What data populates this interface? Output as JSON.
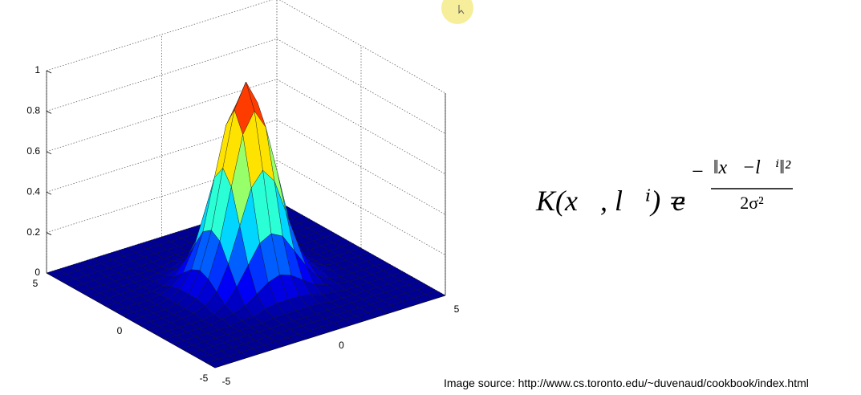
{
  "chart_data": {
    "type": "surface",
    "colormap": "jet",
    "x": [
      -5,
      -4.5,
      -4,
      -3.5,
      -3,
      -2.5,
      -2,
      -1.5,
      -1,
      -0.5,
      0,
      0.5,
      1,
      1.5,
      2,
      2.5,
      3,
      3.5,
      4,
      4.5,
      5
    ],
    "y": [
      -5,
      -4.5,
      -4,
      -3.5,
      -3,
      -2.5,
      -2,
      -1.5,
      -1,
      -0.5,
      0,
      0.5,
      1,
      1.5,
      2,
      2.5,
      3,
      3.5,
      4,
      4.5,
      5
    ],
    "z": [
      [
        0,
        0,
        0,
        0,
        0,
        0,
        0,
        0,
        0,
        0,
        0,
        0,
        0,
        0,
        0,
        0,
        0,
        0,
        0,
        0,
        0
      ],
      [
        0,
        0,
        0,
        0,
        0,
        0,
        0,
        0,
        0,
        0,
        0,
        0,
        0,
        0,
        0,
        0,
        0,
        0,
        0,
        0,
        0
      ],
      [
        0,
        0,
        0,
        0,
        0,
        0,
        0,
        0,
        0,
        0,
        0,
        0,
        0,
        0,
        0,
        0,
        0,
        0,
        0,
        0,
        0
      ],
      [
        0,
        0,
        0,
        0,
        0,
        0,
        0,
        0,
        0,
        0,
        0,
        0,
        0,
        0,
        0,
        0,
        0,
        0,
        0,
        0,
        0
      ],
      [
        0,
        0,
        0,
        0,
        0,
        0,
        0,
        0,
        0.01,
        0.01,
        0.01,
        0.01,
        0.01,
        0,
        0,
        0,
        0,
        0,
        0,
        0,
        0
      ],
      [
        0,
        0,
        0,
        0,
        0,
        0,
        0.01,
        0.01,
        0.03,
        0.04,
        0.04,
        0.04,
        0.03,
        0.01,
        0.01,
        0,
        0,
        0,
        0,
        0,
        0
      ],
      [
        0,
        0,
        0,
        0,
        0,
        0.01,
        0.02,
        0.04,
        0.08,
        0.12,
        0.14,
        0.12,
        0.08,
        0.04,
        0.02,
        0.01,
        0,
        0,
        0,
        0,
        0
      ],
      [
        0,
        0,
        0,
        0,
        0,
        0.01,
        0.04,
        0.11,
        0.2,
        0.29,
        0.32,
        0.29,
        0.2,
        0.11,
        0.04,
        0.01,
        0,
        0,
        0,
        0,
        0
      ],
      [
        0,
        0,
        0,
        0,
        0.01,
        0.03,
        0.08,
        0.2,
        0.37,
        0.54,
        0.61,
        0.54,
        0.37,
        0.2,
        0.08,
        0.03,
        0.01,
        0,
        0,
        0,
        0
      ],
      [
        0,
        0,
        0,
        0,
        0.01,
        0.04,
        0.12,
        0.29,
        0.54,
        0.78,
        0.88,
        0.78,
        0.54,
        0.29,
        0.12,
        0.04,
        0.01,
        0,
        0,
        0,
        0
      ],
      [
        0,
        0,
        0,
        0,
        0.01,
        0.04,
        0.14,
        0.32,
        0.61,
        0.88,
        1,
        0.88,
        0.61,
        0.32,
        0.14,
        0.04,
        0.01,
        0,
        0,
        0,
        0
      ],
      [
        0,
        0,
        0,
        0,
        0.01,
        0.04,
        0.12,
        0.29,
        0.54,
        0.78,
        0.88,
        0.78,
        0.54,
        0.29,
        0.12,
        0.04,
        0.01,
        0,
        0,
        0,
        0
      ],
      [
        0,
        0,
        0,
        0,
        0.01,
        0.03,
        0.08,
        0.2,
        0.37,
        0.54,
        0.61,
        0.54,
        0.37,
        0.2,
        0.08,
        0.03,
        0.01,
        0,
        0,
        0,
        0
      ],
      [
        0,
        0,
        0,
        0,
        0,
        0.01,
        0.04,
        0.11,
        0.2,
        0.29,
        0.32,
        0.29,
        0.2,
        0.11,
        0.04,
        0.01,
        0,
        0,
        0,
        0,
        0
      ],
      [
        0,
        0,
        0,
        0,
        0,
        0.01,
        0.02,
        0.04,
        0.08,
        0.12,
        0.14,
        0.12,
        0.08,
        0.04,
        0.02,
        0.01,
        0,
        0,
        0,
        0,
        0
      ],
      [
        0,
        0,
        0,
        0,
        0,
        0,
        0.01,
        0.01,
        0.03,
        0.04,
        0.04,
        0.04,
        0.03,
        0.01,
        0.01,
        0,
        0,
        0,
        0,
        0,
        0
      ],
      [
        0,
        0,
        0,
        0,
        0,
        0,
        0,
        0,
        0.01,
        0.01,
        0.01,
        0.01,
        0.01,
        0,
        0,
        0,
        0,
        0,
        0,
        0,
        0
      ],
      [
        0,
        0,
        0,
        0,
        0,
        0,
        0,
        0,
        0,
        0,
        0,
        0,
        0,
        0,
        0,
        0,
        0,
        0,
        0,
        0,
        0
      ],
      [
        0,
        0,
        0,
        0,
        0,
        0,
        0,
        0,
        0,
        0,
        0,
        0,
        0,
        0,
        0,
        0,
        0,
        0,
        0,
        0,
        0
      ],
      [
        0,
        0,
        0,
        0,
        0,
        0,
        0,
        0,
        0,
        0,
        0,
        0,
        0,
        0,
        0,
        0,
        0,
        0,
        0,
        0,
        0
      ],
      [
        0,
        0,
        0,
        0,
        0,
        0,
        0,
        0,
        0,
        0,
        0,
        0,
        0,
        0,
        0,
        0,
        0,
        0,
        0,
        0,
        0
      ]
    ],
    "xlim": [
      -5,
      5
    ],
    "ylim": [
      -5,
      5
    ],
    "zlim": [
      0,
      1
    ],
    "xticks": [
      -5,
      0,
      5
    ],
    "yticks": [
      -5,
      0,
      5
    ],
    "zticks": [
      0,
      0.2,
      0.4,
      0.6,
      0.8,
      1
    ],
    "grid": true
  },
  "formula": {
    "lhs": "K(x⃗, l⃗ⁱ) =",
    "base": "e",
    "sign": "−",
    "numerator": "‖x⃗−l⃗ⁱ‖²",
    "denominator": "2σ²"
  },
  "caption": "Image source: http://www.cs.toronto.edu/~duvenaud/cookbook/index.html"
}
